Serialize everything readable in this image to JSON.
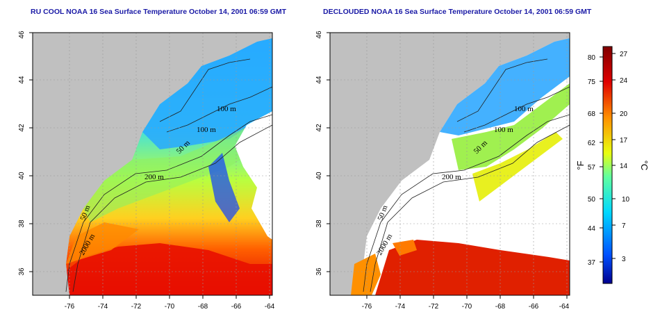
{
  "titles": {
    "left": "RU COOL NOAA 16 Sea Surface Temperature October 14, 2001 06:59 GMT",
    "right": "DECLOUDED NOAA 16 Sea Surface Temperature October 14, 2001 06:59 GMT"
  },
  "axes": {
    "x_ticks": [
      "-76",
      "-74",
      "-72",
      "-70",
      "-68",
      "-66",
      "-64"
    ],
    "y_ticks": [
      "36",
      "38",
      "40",
      "42",
      "44",
      "46"
    ]
  },
  "contour_labels": {
    "left": [
      "100 m",
      "100 m",
      "50 m",
      "200 m",
      "50 m",
      "2000 m"
    ],
    "right": [
      "100 m",
      "100 m",
      "50 m",
      "200 m",
      "50 m",
      "2000 m"
    ]
  },
  "colorbar": {
    "fahrenheit_ticks": [
      "80",
      "75",
      "68",
      "62",
      "57",
      "50",
      "44",
      "37"
    ],
    "celsius_ticks": [
      "27",
      "24",
      "20",
      "17",
      "14",
      "10",
      "7",
      "3"
    ],
    "fahrenheit_unit": "°F",
    "celsius_unit": "°C"
  },
  "colors": {
    "land": "#c0c0c0",
    "title": "#1a1aa6",
    "scale": [
      "#00008f",
      "#0050ff",
      "#00d8ff",
      "#60ffa0",
      "#e8ff10",
      "#ff9000",
      "#e00000",
      "#800000"
    ]
  }
}
